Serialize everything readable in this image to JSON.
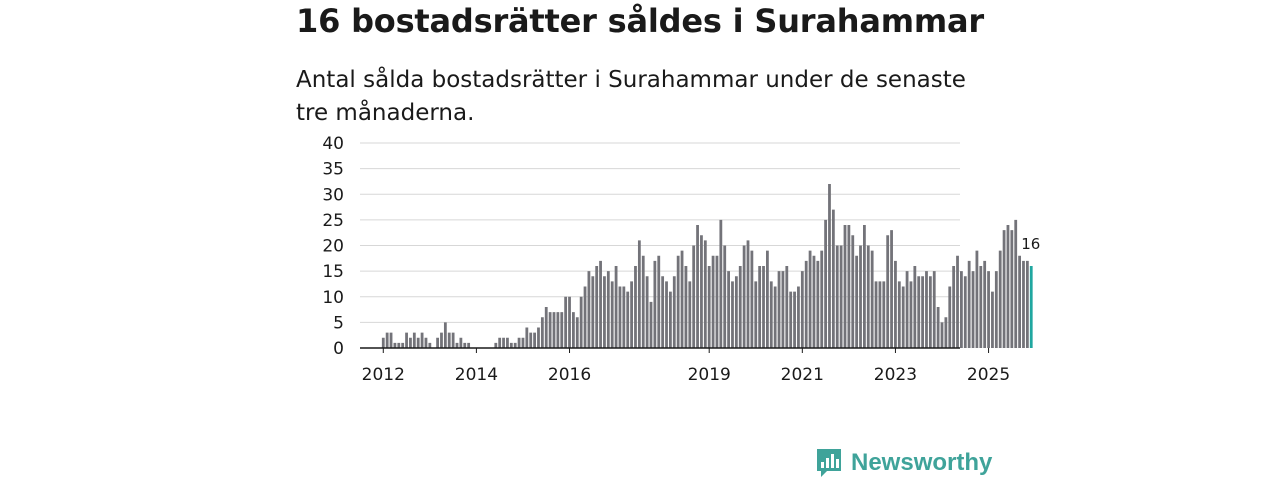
{
  "headline": "16 bostadsrätter såldes i Surahammar",
  "subtitle": "Antal sålda bostadsrätter i Surahammar under de senaste tre månaderna.",
  "brand": {
    "name": "Newsworthy",
    "icon": "newsworthy-logo-icon",
    "color": "#3fa39a"
  },
  "chart_data": {
    "type": "bar",
    "title": "16 bostadsrätter såldes i Surahammar",
    "subtitle": "Antal sålda bostadsrätter i Surahammar under de senaste tre månaderna.",
    "xlabel": "",
    "ylabel": "",
    "ylim": [
      0,
      40
    ],
    "yticks": [
      0,
      5,
      10,
      15,
      20,
      25,
      30,
      35,
      40
    ],
    "grid": true,
    "start": "2011-07",
    "frequency": "monthly",
    "xtick_labels": [
      {
        "label": "2012",
        "month": "2012-01"
      },
      {
        "label": "2014",
        "month": "2014-01"
      },
      {
        "label": "2016",
        "month": "2016-01"
      },
      {
        "label": "2019",
        "month": "2019-01"
      },
      {
        "label": "2021",
        "month": "2021-01"
      },
      {
        "label": "2023",
        "month": "2023-01"
      },
      {
        "label": "2025",
        "month": "2025-01"
      }
    ],
    "values": [
      0,
      0,
      0,
      0,
      0,
      0,
      2,
      3,
      3,
      1,
      1,
      1,
      3,
      2,
      3,
      2,
      3,
      2,
      1,
      0,
      2,
      3,
      5,
      3,
      3,
      1,
      2,
      1,
      1,
      0,
      0,
      0,
      0,
      0,
      0,
      1,
      2,
      2,
      2,
      1,
      1,
      2,
      2,
      4,
      3,
      3,
      4,
      6,
      8,
      7,
      7,
      7,
      7,
      10,
      10,
      7,
      6,
      10,
      12,
      15,
      14,
      16,
      17,
      14,
      15,
      13,
      16,
      12,
      12,
      11,
      13,
      16,
      21,
      18,
      14,
      9,
      17,
      18,
      14,
      13,
      11,
      14,
      18,
      19,
      16,
      13,
      20,
      24,
      22,
      21,
      16,
      18,
      18,
      25,
      20,
      15,
      13,
      14,
      16,
      20,
      21,
      19,
      13,
      16,
      16,
      19,
      13,
      12,
      15,
      15,
      16,
      11,
      11,
      12,
      15,
      17,
      19,
      18,
      17,
      19,
      25,
      32,
      27,
      20,
      20,
      24,
      24,
      22,
      18,
      20,
      24,
      20,
      19,
      13,
      13,
      13,
      22,
      23,
      17,
      13,
      12,
      15,
      13,
      16,
      14,
      14,
      15,
      14,
      15,
      8,
      5,
      6,
      12,
      16,
      18,
      15,
      14,
      17,
      15,
      19,
      16,
      17,
      15,
      11,
      15,
      19,
      23,
      24,
      23,
      25,
      18,
      17,
      17,
      16
    ],
    "last_value_label": "16",
    "bar_color": "#737379",
    "highlight_color": "#20a7a0"
  }
}
